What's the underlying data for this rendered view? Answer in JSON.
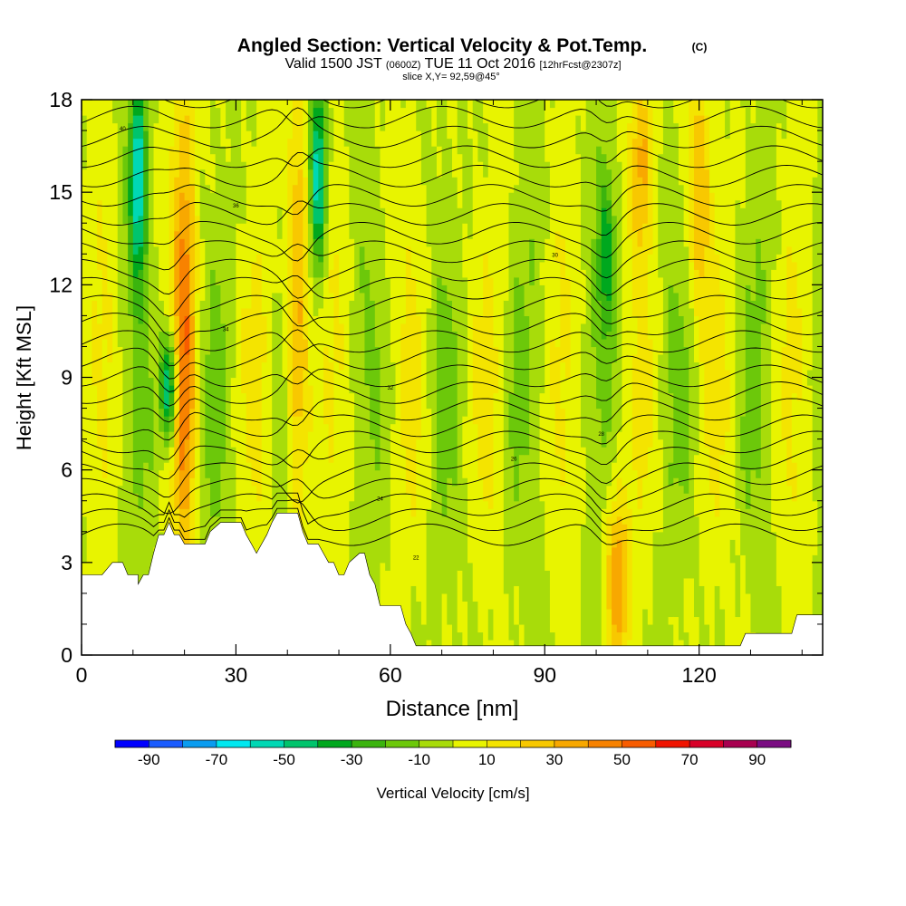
{
  "header": {
    "title": "Angled Section: Vertical Velocity & Pot.Temp.",
    "title_units": "(C)",
    "valid_prefix": "Valid 1500 JST",
    "valid_utc": "(0600Z)",
    "valid_date": "TUE 11 Oct 2016",
    "forecast": "[12hrFcst@2307z]",
    "slice": "slice X,Y= 92,59@45°"
  },
  "chart_data": {
    "type": "heatmap",
    "title": "Angled Section: Vertical Velocity & Pot.Temp.",
    "xlabel": "Distance [nm]",
    "ylabel": "Height [Kft MSL]",
    "xlim": [
      0,
      144
    ],
    "ylim": [
      0,
      18
    ],
    "x_ticks": [
      0,
      30,
      60,
      90,
      120
    ],
    "x_tick_labels": [
      "0",
      "30",
      "60",
      "90",
      "120"
    ],
    "y_ticks": [
      0,
      3,
      6,
      9,
      12,
      15,
      18
    ],
    "y_tick_labels": [
      "0",
      "3",
      "6",
      "9",
      "12",
      "15",
      "18"
    ],
    "grid": false,
    "field": "vertical velocity (cm/s), filled contours; potential temperature (C) as black contour lines",
    "updraft_columns": [
      {
        "x": 20,
        "z_min": 3.8,
        "z_max": 18,
        "peak": 40
      },
      {
        "x": 42,
        "z_min": 4.5,
        "z_max": 18,
        "peak": 40
      },
      {
        "x": 104,
        "z_min": 0.4,
        "z_max": 4.5,
        "peak": 40
      },
      {
        "x": 109,
        "z_min": 14,
        "z_max": 18,
        "peak": 30
      },
      {
        "x": 120,
        "z_min": 12,
        "z_max": 18,
        "peak": 30
      }
    ],
    "downdraft_columns": [
      {
        "x": 11,
        "z_min": 13,
        "z_max": 18,
        "peak": -60
      },
      {
        "x": 17,
        "z_min": 7.5,
        "z_max": 10,
        "peak": -60
      },
      {
        "x": 46,
        "z_min": 13,
        "z_max": 18,
        "peak": -60
      },
      {
        "x": 102,
        "z_min": 11,
        "z_max": 15,
        "peak": -30
      }
    ],
    "terrain_kft": [
      [
        0,
        2.6
      ],
      [
        4,
        2.6
      ],
      [
        6,
        3.0
      ],
      [
        8,
        3.0
      ],
      [
        9,
        2.6
      ],
      [
        11,
        2.6
      ],
      [
        11,
        2.3
      ],
      [
        12,
        2.6
      ],
      [
        13,
        2.6
      ],
      [
        14,
        3.3
      ],
      [
        15,
        3.9
      ],
      [
        16,
        3.9
      ],
      [
        17,
        4.3
      ],
      [
        18,
        3.9
      ],
      [
        19,
        3.9
      ],
      [
        20,
        3.6
      ],
      [
        24,
        3.6
      ],
      [
        25,
        4.0
      ],
      [
        27,
        4.3
      ],
      [
        30,
        4.3
      ],
      [
        31,
        4.3
      ],
      [
        32,
        3.9
      ],
      [
        33,
        3.6
      ],
      [
        34,
        3.3
      ],
      [
        35,
        3.6
      ],
      [
        36,
        3.9
      ],
      [
        37,
        4.3
      ],
      [
        38,
        4.6
      ],
      [
        42,
        4.6
      ],
      [
        43,
        4.0
      ],
      [
        44,
        3.6
      ],
      [
        46,
        3.6
      ],
      [
        47,
        3.3
      ],
      [
        48,
        3.0
      ],
      [
        49,
        3.0
      ],
      [
        50,
        2.6
      ],
      [
        51,
        2.6
      ],
      [
        52,
        3.0
      ],
      [
        54,
        3.3
      ],
      [
        55,
        3.3
      ],
      [
        56,
        2.6
      ],
      [
        57,
        2.3
      ],
      [
        58,
        1.6
      ],
      [
        59,
        1.6
      ],
      [
        60,
        1.6
      ],
      [
        62,
        1.6
      ],
      [
        63,
        1.0
      ],
      [
        64,
        0.7
      ],
      [
        65,
        0.3
      ],
      [
        120,
        0.3
      ],
      [
        128,
        0.3
      ],
      [
        129,
        0.7
      ],
      [
        138,
        0.7
      ],
      [
        139,
        1.3
      ],
      [
        144,
        1.3
      ]
    ],
    "theta_labels": [
      "40",
      "36",
      "34",
      "32",
      "30",
      "28",
      "26",
      "24",
      "22"
    ],
    "colorbar": {
      "label": "Vertical Velocity [cm/s]",
      "tick_labels": [
        "-90",
        "-70",
        "-50",
        "-30",
        "-10",
        "10",
        "30",
        "50",
        "70",
        "90"
      ],
      "levels": [
        -100,
        -90,
        -80,
        -70,
        -60,
        -50,
        -40,
        -30,
        -20,
        -10,
        0,
        10,
        20,
        30,
        40,
        50,
        60,
        70,
        80,
        90,
        100
      ],
      "colors": [
        "#0000ff",
        "#1a5cff",
        "#0a9cf0",
        "#00e8f0",
        "#00d8b4",
        "#00c46c",
        "#00a81e",
        "#3bb40e",
        "#6cc80a",
        "#a8dc0a",
        "#e8f400",
        "#f4e400",
        "#f8c800",
        "#f8a800",
        "#f88200",
        "#f85c00",
        "#f01400",
        "#d80028",
        "#a80050",
        "#7a0c82"
      ]
    }
  }
}
